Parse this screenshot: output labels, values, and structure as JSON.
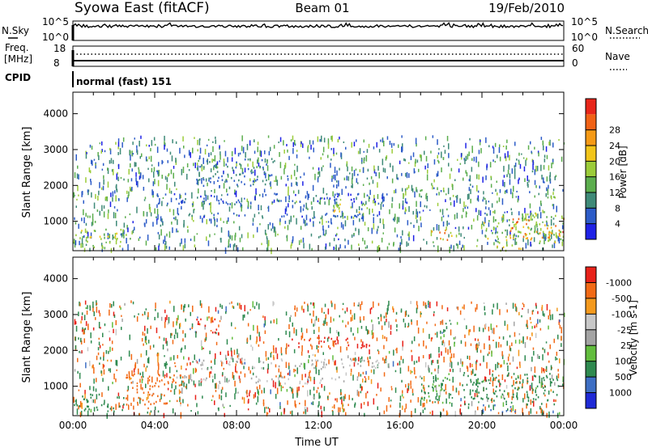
{
  "header": {
    "title": "Syowa East (fitACF)",
    "beam": "Beam 01",
    "date": "19/Feb/2010"
  },
  "strips": {
    "nsky_label": "N.Sky",
    "nsky_ticks": [
      "10^5",
      "10^0"
    ],
    "nsearch_label": "N.Search",
    "nsearch_ticks": [
      "10^5",
      "10^0"
    ],
    "freq_label": "Freq.",
    "freq_unit": "[MHz]",
    "freq_ticks": [
      "18",
      "8"
    ],
    "nave_label": "Nave",
    "nave_ticks": [
      "60",
      "0"
    ],
    "cpid_label": "CPID",
    "cpid_value": "normal (fast) 151"
  },
  "chart_data": [
    {
      "type": "heatmap",
      "title": "",
      "xlabel": "",
      "ylabel": "Slant Range [km]",
      "xlim": [
        "00:00",
        "24:00"
      ],
      "ylim": [
        180,
        4600
      ],
      "yticks": [
        1000,
        2000,
        3000,
        4000
      ],
      "ytick_labels": [
        "1000",
        "2000",
        "3000",
        "4000"
      ],
      "colorbar": {
        "label": "Power [dB]",
        "ticks": [
          "4",
          "8",
          "12",
          "16",
          "20",
          "24",
          "28"
        ],
        "colors": [
          "#1f22e6",
          "#2d5cc8",
          "#3f8a78",
          "#5cae4e",
          "#9ccc3a",
          "#f2c51a",
          "#f59a16",
          "#f16216",
          "#e8261a"
        ]
      },
      "regions": [
        {
          "t0": 0.0,
          "t1": 2.8,
          "r0": 300,
          "r1": 800,
          "value": 18
        },
        {
          "t0": 4.0,
          "t1": 15.0,
          "r0": 1100,
          "r1": 1250,
          "value": 6
        },
        {
          "t0": 4.0,
          "t1": 15.5,
          "r0": 1500,
          "r1": 1800,
          "value": 6
        },
        {
          "t0": 12.5,
          "t1": 14.5,
          "r0": 1200,
          "r1": 1500,
          "value": 20
        },
        {
          "t0": 16.8,
          "t1": 18.2,
          "r0": 1700,
          "r1": 1900,
          "value": 10
        },
        {
          "t0": 17.5,
          "t1": 18.5,
          "r0": 500,
          "r1": 800,
          "value": 24
        },
        {
          "t0": 20.0,
          "t1": 24.0,
          "r0": 400,
          "r1": 1300,
          "value": 16
        },
        {
          "t0": 21.3,
          "t1": 24.0,
          "r0": 500,
          "r1": 1100,
          "value": 28
        },
        {
          "t0": 20.5,
          "t1": 22.0,
          "r0": 200,
          "r1": 450,
          "value": 22
        },
        {
          "t0": 6.0,
          "t1": 10.0,
          "r0": 2000,
          "r1": 2800,
          "value": 8
        }
      ]
    },
    {
      "type": "heatmap",
      "title": "",
      "xlabel": "Time UT",
      "ylabel": "Slant Range [km]",
      "xlim": [
        "00:00",
        "24:00"
      ],
      "xticks": [
        "00:00",
        "04:00",
        "08:00",
        "12:00",
        "16:00",
        "20:00",
        "00:00"
      ],
      "ylim": [
        180,
        4600
      ],
      "yticks": [
        1000,
        2000,
        3000,
        4000
      ],
      "ytick_labels": [
        "1000",
        "2000",
        "3000",
        "4000"
      ],
      "colorbar": {
        "label": "Velocity [m s-1]",
        "ticks": [
          "1000",
          "500",
          "100",
          "25",
          "-25",
          "-100",
          "-500",
          "-1000"
        ],
        "colors": [
          "#1f2ad6",
          "#3e6fc4",
          "#2f8a50",
          "#62bd3e",
          "#a4a4a4",
          "#c8c8c8",
          "#f49a1e",
          "#f26a16",
          "#e8221a"
        ]
      },
      "regions": [
        {
          "t0": 0.0,
          "t1": 2.5,
          "r0": 300,
          "r1": 800,
          "value": 200
        },
        {
          "t0": 2.5,
          "t1": 5.5,
          "r0": 500,
          "r1": 1400,
          "value": -250
        },
        {
          "t0": 5.0,
          "t1": 14.0,
          "r0": 1100,
          "r1": 1300,
          "value": 0
        },
        {
          "t0": 6.0,
          "t1": 15.5,
          "r0": 1500,
          "r1": 1800,
          "value": 0
        },
        {
          "t0": 6.0,
          "t1": 7.0,
          "r0": 2500,
          "r1": 2900,
          "value": -800
        },
        {
          "t0": 10.5,
          "t1": 14.5,
          "r0": 2100,
          "r1": 2400,
          "value": -300
        },
        {
          "t0": 17.0,
          "t1": 18.5,
          "r0": 500,
          "r1": 1400,
          "value": 60
        },
        {
          "t0": 19.0,
          "t1": 24.0,
          "r0": 500,
          "r1": 1400,
          "value": 150
        },
        {
          "t0": 20.0,
          "t1": 22.0,
          "r0": 300,
          "r1": 500,
          "value": 600
        }
      ]
    }
  ]
}
